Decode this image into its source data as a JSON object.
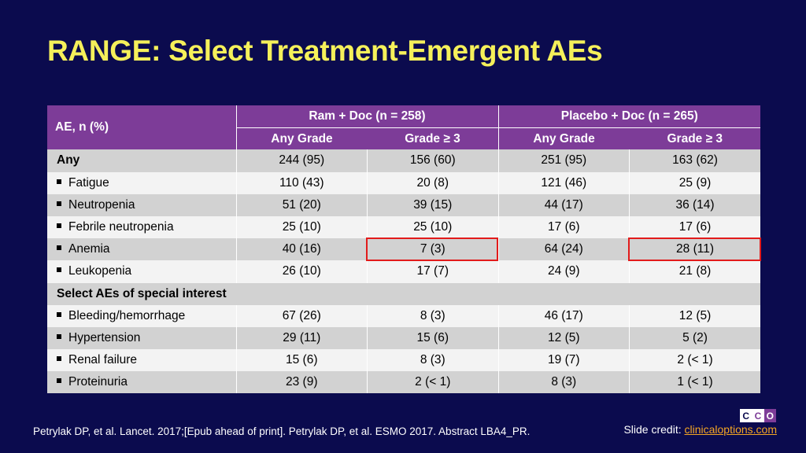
{
  "slide": {
    "title": "RANGE: Select Treatment-Emergent AEs"
  },
  "table": {
    "row_header": "AE, n (%)",
    "groups": [
      "Ram + Doc (n = 258)",
      "Placebo + Doc (n = 265)"
    ],
    "subheaders": [
      "Any Grade",
      "Grade ≥ 3",
      "Any Grade",
      "Grade ≥ 3"
    ],
    "rows": [
      {
        "label": "Any",
        "values": [
          "244 (95)",
          "156 (60)",
          "251 (95)",
          "163 (62)"
        ]
      },
      {
        "label": "Fatigue",
        "values": [
          "110 (43)",
          "20 (8)",
          "121 (46)",
          "25 (9)"
        ]
      },
      {
        "label": "Neutropenia",
        "values": [
          "51 (20)",
          "39 (15)",
          "44 (17)",
          "36 (14)"
        ]
      },
      {
        "label": "Febrile neutropenia",
        "values": [
          "25 (10)",
          "25 (10)",
          "17 (6)",
          "17 (6)"
        ]
      },
      {
        "label": "Anemia",
        "values": [
          "40 (16)",
          "7 (3)",
          "64 (24)",
          "28 (11)"
        ]
      },
      {
        "label": "Leukopenia",
        "values": [
          "26 (10)",
          "17 (7)",
          "24 (9)",
          "21 (8)"
        ]
      },
      {
        "label": "Select AEs of special interest"
      },
      {
        "label": "Bleeding/hemorrhage",
        "values": [
          "67 (26)",
          "8 (3)",
          "46 (17)",
          "12 (5)"
        ]
      },
      {
        "label": "Hypertension",
        "values": [
          "29 (11)",
          "15 (6)",
          "12 (5)",
          "5 (2)"
        ]
      },
      {
        "label": "Renal failure",
        "values": [
          "15 (6)",
          "8 (3)",
          "19 (7)",
          "2 (< 1)"
        ]
      },
      {
        "label": "Proteinuria",
        "values": [
          "23 (9)",
          "2 (< 1)",
          "8 (3)",
          "1 (< 1)"
        ]
      }
    ]
  },
  "footer": {
    "citation": "Petrylak DP, et al. Lancet. 2017;[Epub ahead of print]. Petrylak DP, et al. ESMO 2017. Abstract LBA4_PR.",
    "credit_label": "Slide credit: ",
    "credit_link": "clinicaloptions.com"
  },
  "logo": {
    "letters": [
      "C",
      "C",
      "O"
    ]
  },
  "colors": {
    "background": "#0b0b4e",
    "title": "#f5f05a",
    "header": "#7d3c98",
    "highlight": "#e21b1b",
    "link": "#f5a623"
  }
}
